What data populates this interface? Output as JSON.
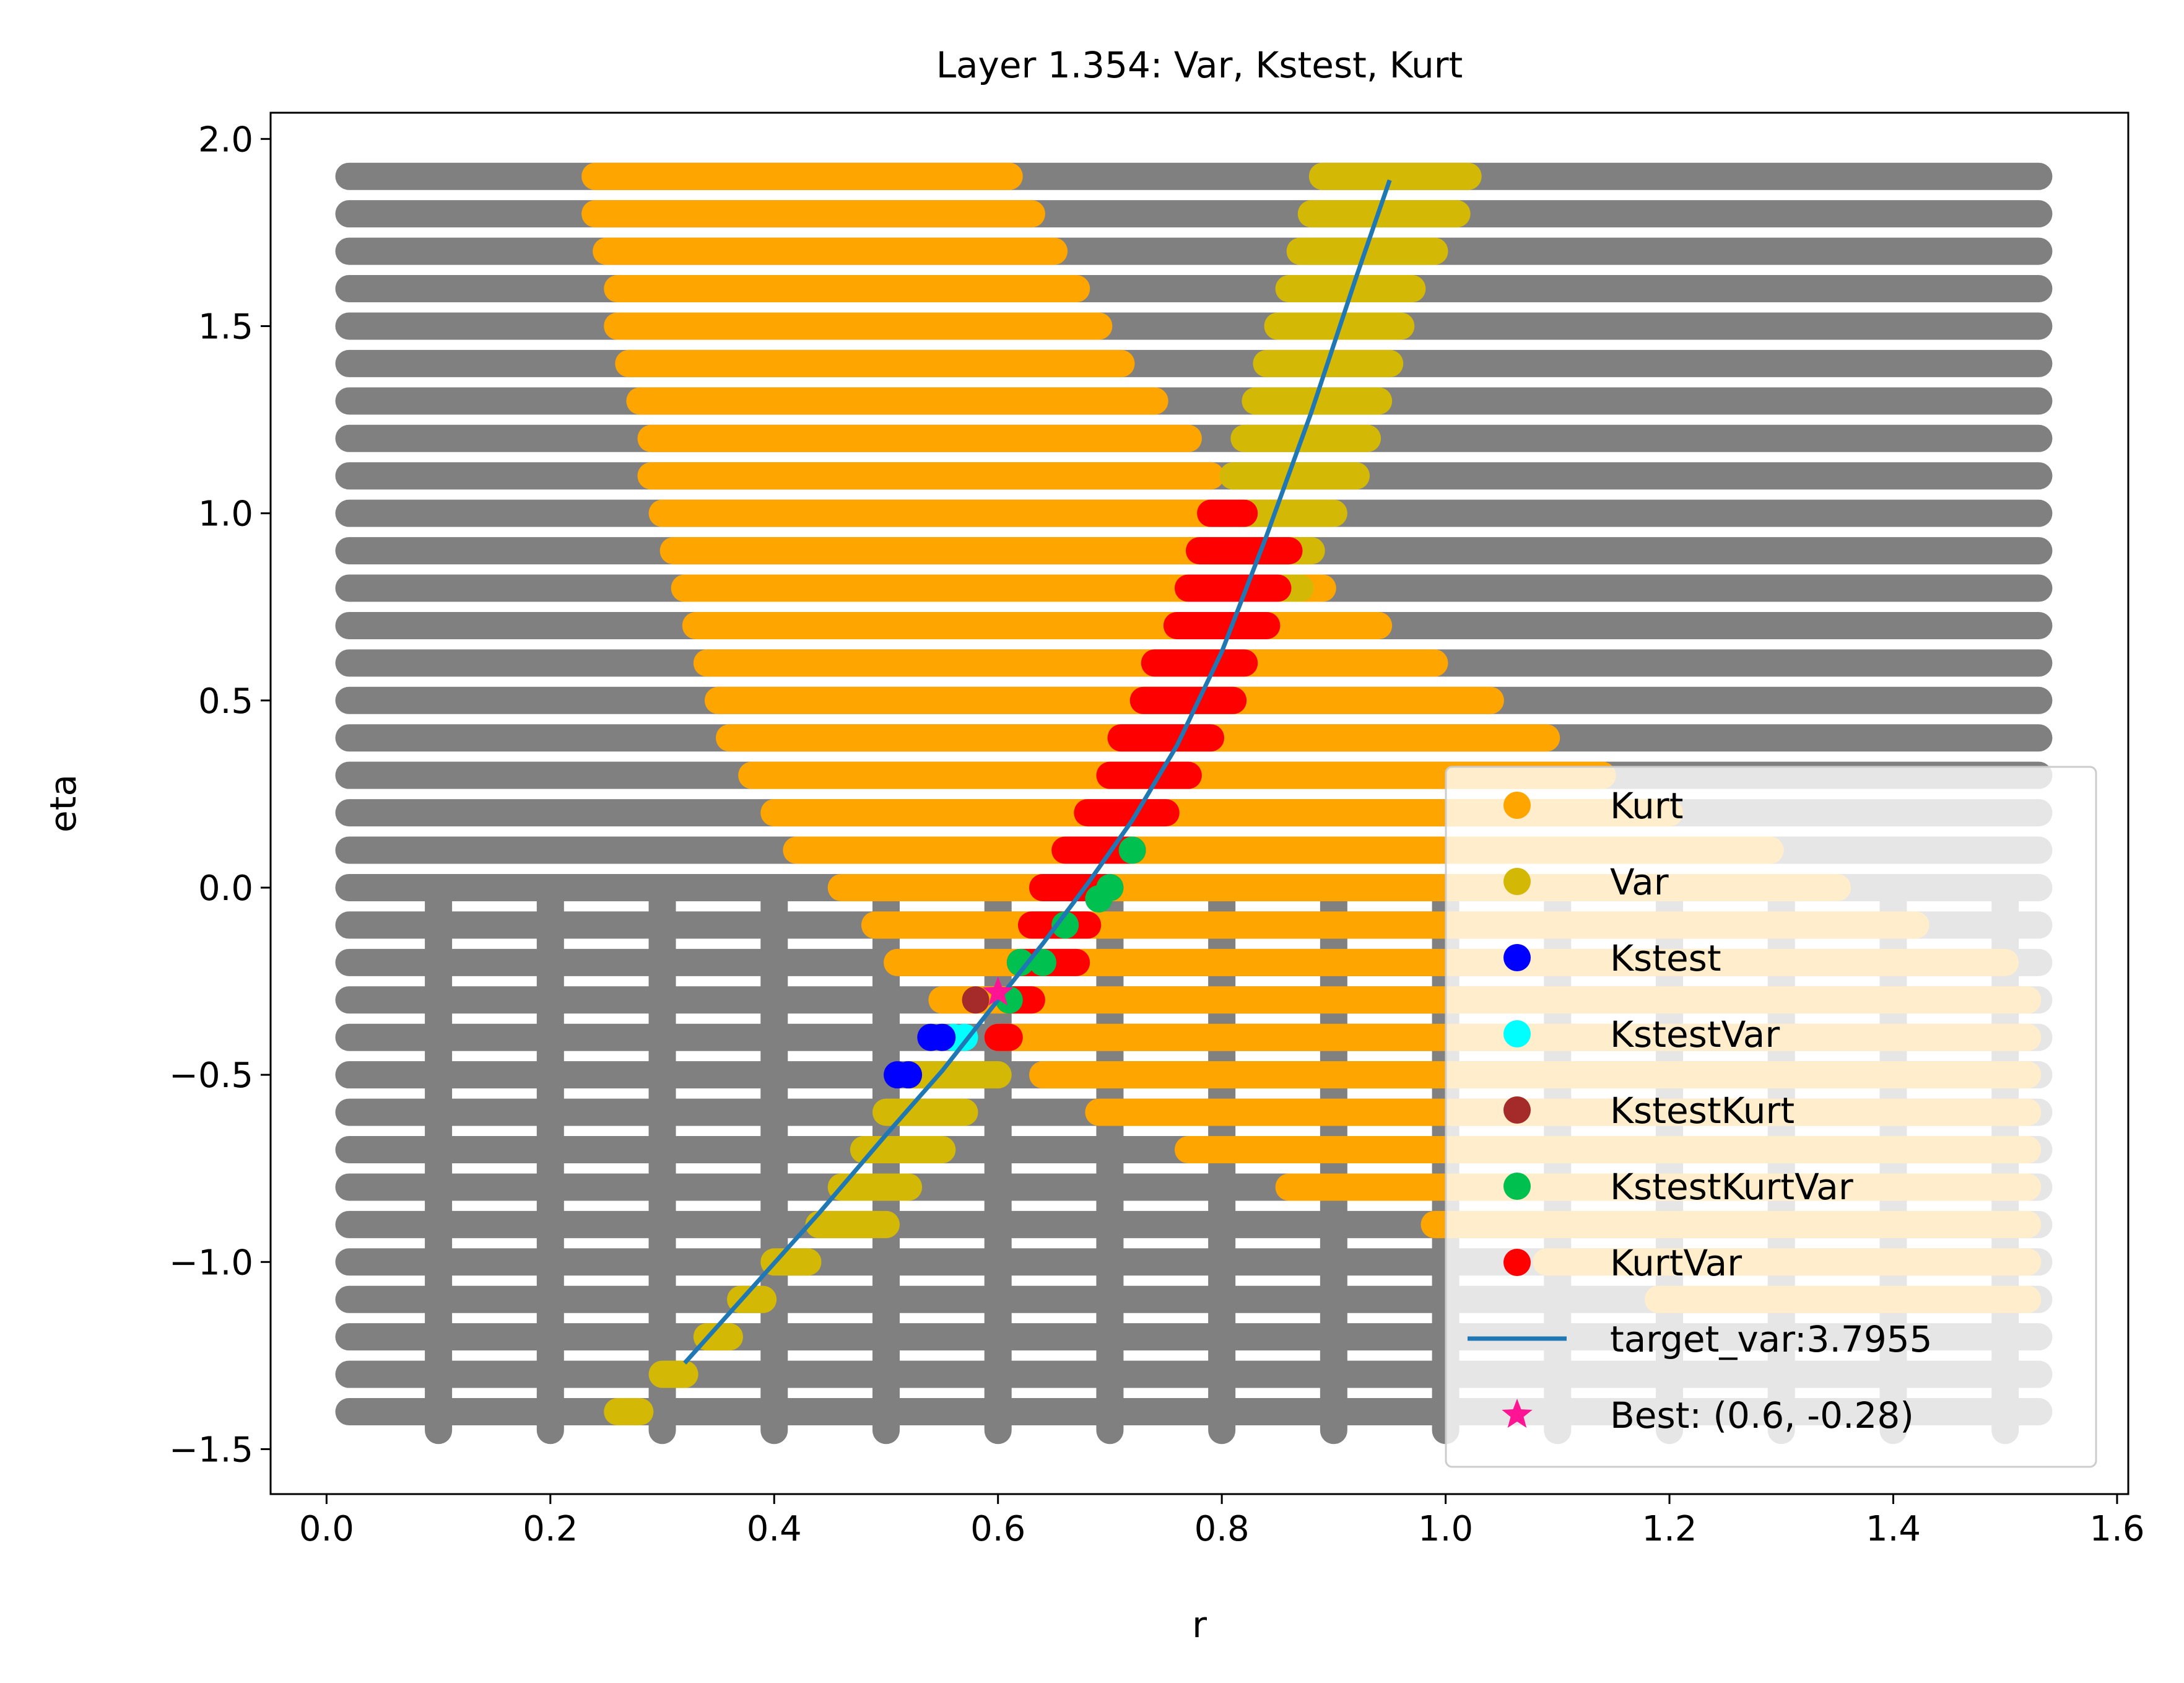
{
  "chart_data": {
    "type": "scatter",
    "title": "Layer 1.354: Var, Kstest, Kurt",
    "xlabel": "r",
    "ylabel": "eta",
    "xlim": [
      -0.05,
      1.61
    ],
    "ylim": [
      -1.62,
      2.07
    ],
    "xticks": [
      0.0,
      0.2,
      0.4,
      0.6,
      0.8,
      1.0,
      1.2,
      1.4,
      1.6
    ],
    "xtick_labels": [
      "0.0",
      "0.2",
      "0.4",
      "0.6",
      "0.8",
      "1.0",
      "1.2",
      "1.4",
      "1.6"
    ],
    "yticks": [
      -1.5,
      -1.0,
      -0.5,
      0.0,
      0.5,
      1.0,
      1.5,
      2.0
    ],
    "ytick_labels": [
      "−1.5",
      "−1.0",
      "−0.5",
      "0.0",
      "0.5",
      "1.0",
      "1.5",
      "2.0"
    ],
    "grid": false,
    "legend_position": "lower-right",
    "colors": {
      "background_points": "#808080",
      "Kurt": "#FFA500",
      "Var": "#D4B806",
      "Kstest": "#0000FF",
      "KstestVar": "#00FFFF",
      "KstestKurt": "#A52A2A",
      "KstestKurtVar": "#00C050",
      "KurtVar": "#FF0000",
      "target_var": "#1F77B4",
      "Best": "#FF1493"
    },
    "grid_points": {
      "rows_eta": {
        "start": -1.4,
        "stop": 1.9,
        "step": 0.1
      },
      "row_r_range": [
        0.02,
        1.53
      ],
      "columns_r": [
        0.1,
        0.2,
        0.3,
        0.4,
        0.5,
        0.6,
        0.7,
        0.8,
        0.9,
        1.0,
        1.1,
        1.2,
        1.3,
        1.4,
        1.5
      ],
      "column_eta_range": [
        -1.45,
        0.0
      ]
    },
    "series": [
      {
        "name": "Kurt",
        "type": "row-segments",
        "segments": [
          [
            1.9,
            0.24,
            0.61
          ],
          [
            1.8,
            0.24,
            0.63
          ],
          [
            1.7,
            0.25,
            0.65
          ],
          [
            1.6,
            0.26,
            0.67
          ],
          [
            1.5,
            0.26,
            0.69
          ],
          [
            1.4,
            0.27,
            0.71
          ],
          [
            1.3,
            0.28,
            0.74
          ],
          [
            1.2,
            0.29,
            0.77
          ],
          [
            1.1,
            0.29,
            0.79
          ],
          [
            1.0,
            0.3,
            0.8
          ],
          [
            0.9,
            0.31,
            0.86
          ],
          [
            0.8,
            0.32,
            0.89
          ],
          [
            0.7,
            0.33,
            0.94
          ],
          [
            0.6,
            0.34,
            0.99
          ],
          [
            0.5,
            0.35,
            1.04
          ],
          [
            0.4,
            0.36,
            1.09
          ],
          [
            0.3,
            0.38,
            1.14
          ],
          [
            0.2,
            0.4,
            1.2
          ],
          [
            0.1,
            0.42,
            1.29
          ],
          [
            0.0,
            0.46,
            1.35
          ],
          [
            -0.1,
            0.49,
            1.42
          ],
          [
            -0.2,
            0.51,
            1.5
          ],
          [
            -0.3,
            0.55,
            1.52
          ],
          [
            -0.4,
            0.6,
            1.52
          ],
          [
            -0.5,
            0.64,
            1.52
          ],
          [
            -0.6,
            0.69,
            1.52
          ],
          [
            -0.7,
            0.77,
            1.52
          ],
          [
            -0.8,
            0.86,
            1.52
          ],
          [
            -0.9,
            0.99,
            1.52
          ],
          [
            -1.0,
            1.09,
            1.52
          ],
          [
            -1.1,
            1.19,
            1.52
          ]
        ]
      },
      {
        "name": "Var",
        "type": "row-segments",
        "segments": [
          [
            1.9,
            0.89,
            1.02
          ],
          [
            1.8,
            0.88,
            1.01
          ],
          [
            1.7,
            0.87,
            0.99
          ],
          [
            1.6,
            0.86,
            0.97
          ],
          [
            1.5,
            0.85,
            0.96
          ],
          [
            1.4,
            0.84,
            0.95
          ],
          [
            1.3,
            0.83,
            0.94
          ],
          [
            1.2,
            0.82,
            0.93
          ],
          [
            1.1,
            0.81,
            0.92
          ],
          [
            1.0,
            0.8,
            0.9
          ],
          [
            0.9,
            0.79,
            0.88
          ],
          [
            0.8,
            0.78,
            0.87
          ],
          [
            -0.5,
            0.52,
            0.6
          ],
          [
            -0.6,
            0.5,
            0.57
          ],
          [
            -0.7,
            0.48,
            0.55
          ],
          [
            -0.8,
            0.46,
            0.52
          ],
          [
            -0.9,
            0.44,
            0.5
          ],
          [
            -1.0,
            0.4,
            0.43
          ],
          [
            -1.1,
            0.37,
            0.39
          ],
          [
            -1.2,
            0.34,
            0.36
          ],
          [
            -1.3,
            0.3,
            0.32
          ],
          [
            -1.4,
            0.26,
            0.28
          ]
        ]
      },
      {
        "name": "KurtVar",
        "type": "row-segments",
        "segments": [
          [
            1.0,
            0.79,
            0.82
          ],
          [
            0.9,
            0.78,
            0.86
          ],
          [
            0.8,
            0.77,
            0.85
          ],
          [
            0.7,
            0.76,
            0.84
          ],
          [
            0.6,
            0.74,
            0.82
          ],
          [
            0.5,
            0.73,
            0.81
          ],
          [
            0.4,
            0.71,
            0.79
          ],
          [
            0.3,
            0.7,
            0.77
          ],
          [
            0.2,
            0.68,
            0.75
          ],
          [
            0.1,
            0.66,
            0.72
          ],
          [
            0.0,
            0.64,
            0.7
          ],
          [
            -0.1,
            0.63,
            0.68
          ],
          [
            -0.2,
            0.62,
            0.67
          ],
          [
            -0.3,
            0.61,
            0.63
          ],
          [
            -0.4,
            0.6,
            0.61
          ]
        ]
      },
      {
        "name": "KstestKurtVar",
        "type": "points",
        "points": [
          [
            0.72,
            0.1
          ],
          [
            0.7,
            0.0
          ],
          [
            0.69,
            -0.03
          ],
          [
            0.66,
            -0.1
          ],
          [
            0.62,
            -0.2
          ],
          [
            0.64,
            -0.2
          ],
          [
            0.61,
            -0.3
          ]
        ]
      },
      {
        "name": "KstestKurt",
        "type": "points",
        "points": [
          [
            0.58,
            -0.3
          ]
        ]
      },
      {
        "name": "KstestVar",
        "type": "points",
        "points": [
          [
            0.56,
            -0.4
          ],
          [
            0.57,
            -0.4
          ]
        ]
      },
      {
        "name": "Kstest",
        "type": "points",
        "points": [
          [
            0.54,
            -0.4
          ],
          [
            0.55,
            -0.4
          ],
          [
            0.51,
            -0.5
          ],
          [
            0.52,
            -0.5
          ]
        ]
      },
      {
        "name": "target_var:3.7955",
        "type": "line",
        "x": [
          0.32,
          0.38,
          0.44,
          0.5,
          0.55,
          0.6,
          0.64,
          0.68,
          0.72,
          0.76,
          0.8,
          0.84,
          0.88,
          0.92,
          0.95
        ],
        "y": [
          -1.27,
          -1.07,
          -0.87,
          -0.66,
          -0.49,
          -0.3,
          -0.15,
          0.01,
          0.18,
          0.38,
          0.63,
          0.94,
          1.27,
          1.63,
          1.89
        ]
      },
      {
        "name": "Best: (0.6, -0.28)",
        "type": "marker",
        "points": [
          [
            0.6,
            -0.28
          ]
        ]
      }
    ],
    "legend": [
      {
        "label": "Kurt",
        "key": "Kurt",
        "marker": "circle"
      },
      {
        "label": "Var",
        "key": "Var",
        "marker": "circle"
      },
      {
        "label": "Kstest",
        "key": "Kstest",
        "marker": "circle"
      },
      {
        "label": "KstestVar",
        "key": "KstestVar",
        "marker": "circle"
      },
      {
        "label": "KstestKurt",
        "key": "KstestKurt",
        "marker": "circle"
      },
      {
        "label": "KstestKurtVar",
        "key": "KstestKurtVar",
        "marker": "circle"
      },
      {
        "label": "KurtVar",
        "key": "KurtVar",
        "marker": "circle"
      },
      {
        "label": "target_var:3.7955",
        "key": "target_var",
        "marker": "line"
      },
      {
        "label": "Best: (0.6, -0.28)",
        "key": "Best",
        "marker": "star"
      }
    ]
  }
}
